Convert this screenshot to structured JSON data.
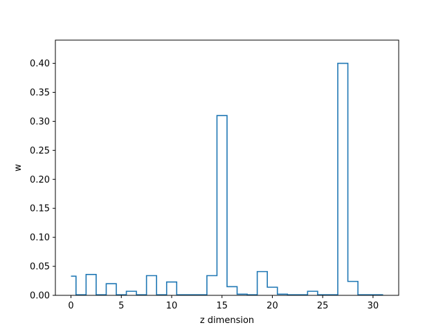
{
  "chart_data": {
    "type": "step",
    "title": "",
    "xlabel": "z dimension",
    "ylabel": "w",
    "xlim": [
      -1.55,
      32.55
    ],
    "ylim": [
      0,
      0.44
    ],
    "xticks": [
      0,
      5,
      10,
      15,
      20,
      25,
      30
    ],
    "xtick_labels": [
      "0",
      "5",
      "10",
      "15",
      "20",
      "25",
      "30"
    ],
    "yticks": [
      0.0,
      0.05,
      0.1,
      0.15,
      0.2,
      0.25,
      0.3,
      0.35,
      0.4
    ],
    "ytick_labels": [
      "0.00",
      "0.05",
      "0.10",
      "0.15",
      "0.20",
      "0.25",
      "0.30",
      "0.35",
      "0.40"
    ],
    "grid": false,
    "step_where": "mid",
    "series": [
      {
        "color": "#1f77b4",
        "x": [
          0,
          1,
          2,
          3,
          4,
          5,
          6,
          7,
          8,
          9,
          10,
          11,
          12,
          13,
          14,
          15,
          16,
          17,
          18,
          19,
          20,
          21,
          22,
          23,
          24,
          25,
          26,
          27,
          28,
          29,
          30,
          31
        ],
        "values": [
          0.033,
          0.001,
          0.036,
          0.001,
          0.02,
          0.001,
          0.007,
          0.001,
          0.034,
          0.001,
          0.023,
          0.001,
          0.001,
          0.001,
          0.034,
          0.31,
          0.015,
          0.002,
          0.001,
          0.041,
          0.014,
          0.002,
          0.001,
          0.001,
          0.007,
          0.001,
          0.001,
          0.4,
          0.024,
          0.001,
          0.001,
          0.001
        ]
      }
    ]
  }
}
